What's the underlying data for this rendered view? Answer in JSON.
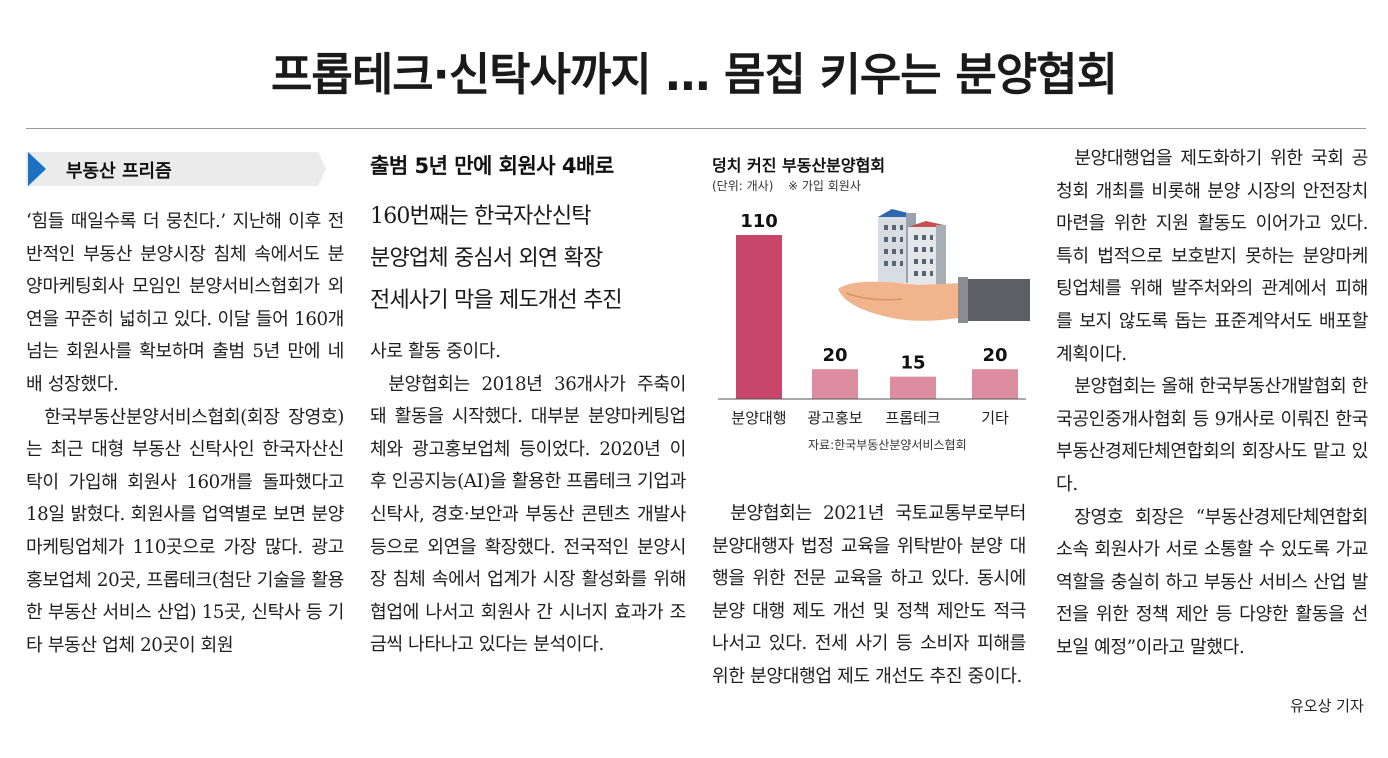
{
  "headline": "프롭테크·신탁사까지 … 몸집 키우는 분양협회",
  "section_label": "부동산 프리즘",
  "subheads": {
    "main": "출범 5년 만에 회원사 4배로",
    "lines": [
      "160번째는 한국자산신탁",
      "분양업체 중심서 외연 확장",
      "전세사기 막을 제도개선 추진"
    ]
  },
  "col1": [
    "‘힘들 때일수록 더 뭉친다.’ 지난해 이후 전반적인 부동산 분양시장 침체 속에서도 분양마케팅회사 모임인 분양서비스협회가 외연을 꾸준히 넓히고 있다. 이달 들어 160개 넘는 회원사를 확보하며 출범 5년 만에 네 배 성장했다.",
    "한국부동산분양서비스협회(회장 장영호)는 최근 대형 부동산 신탁사인 한국자산신탁이 가입해 회원사 160개를 돌파했다고 18일 밝혔다. 회원사를 업역별로 보면 분양마케팅업체가 110곳으로 가장 많다. 광고홍보업체 20곳, 프롭테크(첨단 기술을 활용한 부동산 서비스 산업) 15곳, 신탁사 등 기타 부동산 업체 20곳이 회원"
  ],
  "col2": [
    "사로 활동 중이다.",
    "분양협회는 2018년 36개사가 주축이 돼 활동을 시작했다. 대부분 분양마케팅업체와 광고홍보업체 등이었다. 2020년 이후 인공지능(AI)을 활용한 프롭테크 기업과 신탁사, 경호·보안과 부동산 콘텐츠 개발사 등으로 외연을 확장했다. 전국적인 분양시장 침체 속에서 업계가 시장 활성화를 위해 협업에 나서고 회원사 간 시너지 효과가 조금씩 나타나고 있다는 분석이다."
  ],
  "col3": [
    "분양협회는 2021년 국토교통부로부터 분양대행자 법정 교육을 위탁받아 분양 대행을 위한 전문 교육을 하고 있다. 동시에 분양 대행 제도 개선 및 정책 제안도 적극 나서고 있다. 전세 사기 등 소비자 피해를 위한 분양대행업 제도 개선도 추진 중이다."
  ],
  "col4": [
    "분양대행업을 제도화하기 위한 국회 공청회 개최를 비롯해 분양 시장의 안전장치 마련을 위한 지원 활동도 이어가고 있다. 특히 법적으로 보호받지 못하는 분양마케팅업체를 위해 발주처와의 관계에서 피해를 보지 않도록 돕는 표준계약서도 배포할 계획이다.",
    "분양협회는 올해 한국부동산개발협회 한국공인중개사협회 등 9개사로 이뤄진 한국부동산경제단체연합회의 회장사도 맡고 있다.",
    "장영호 회장은 “부동산경제단체연합회 소속 회원사가 서로 소통할 수 있도록 가교 역할을 충실히 하고 부동산 서비스 산업 발전을 위한 정책 제안 등 다양한 활동을 선보일 예정”이라고 말했다."
  ],
  "byline": "유오상 기자",
  "chart": {
    "title": "덩치 커진 부동산분양협회",
    "unit": "(단위: 개사)",
    "note": "※ 가입 회원사",
    "source": "자료:한국부동산분양서비스협회"
  },
  "chart_data": {
    "type": "bar",
    "title": "덩치 커진 부동산분양협회",
    "unit": "(단위: 개사)",
    "categories": [
      "분양대행",
      "광고홍보",
      "프롭테크",
      "기타"
    ],
    "values": [
      110,
      20,
      15,
      20
    ],
    "ylim": [
      0,
      110
    ],
    "grid": false,
    "legend": "none",
    "colors": {
      "highlight": "#c8466a",
      "normal": "#dc8ea0",
      "text": "#111111"
    }
  },
  "colors": {
    "accent": "#1d6fc0",
    "rule": "#9a9a9a",
    "label_bg": "#ebebeb"
  }
}
